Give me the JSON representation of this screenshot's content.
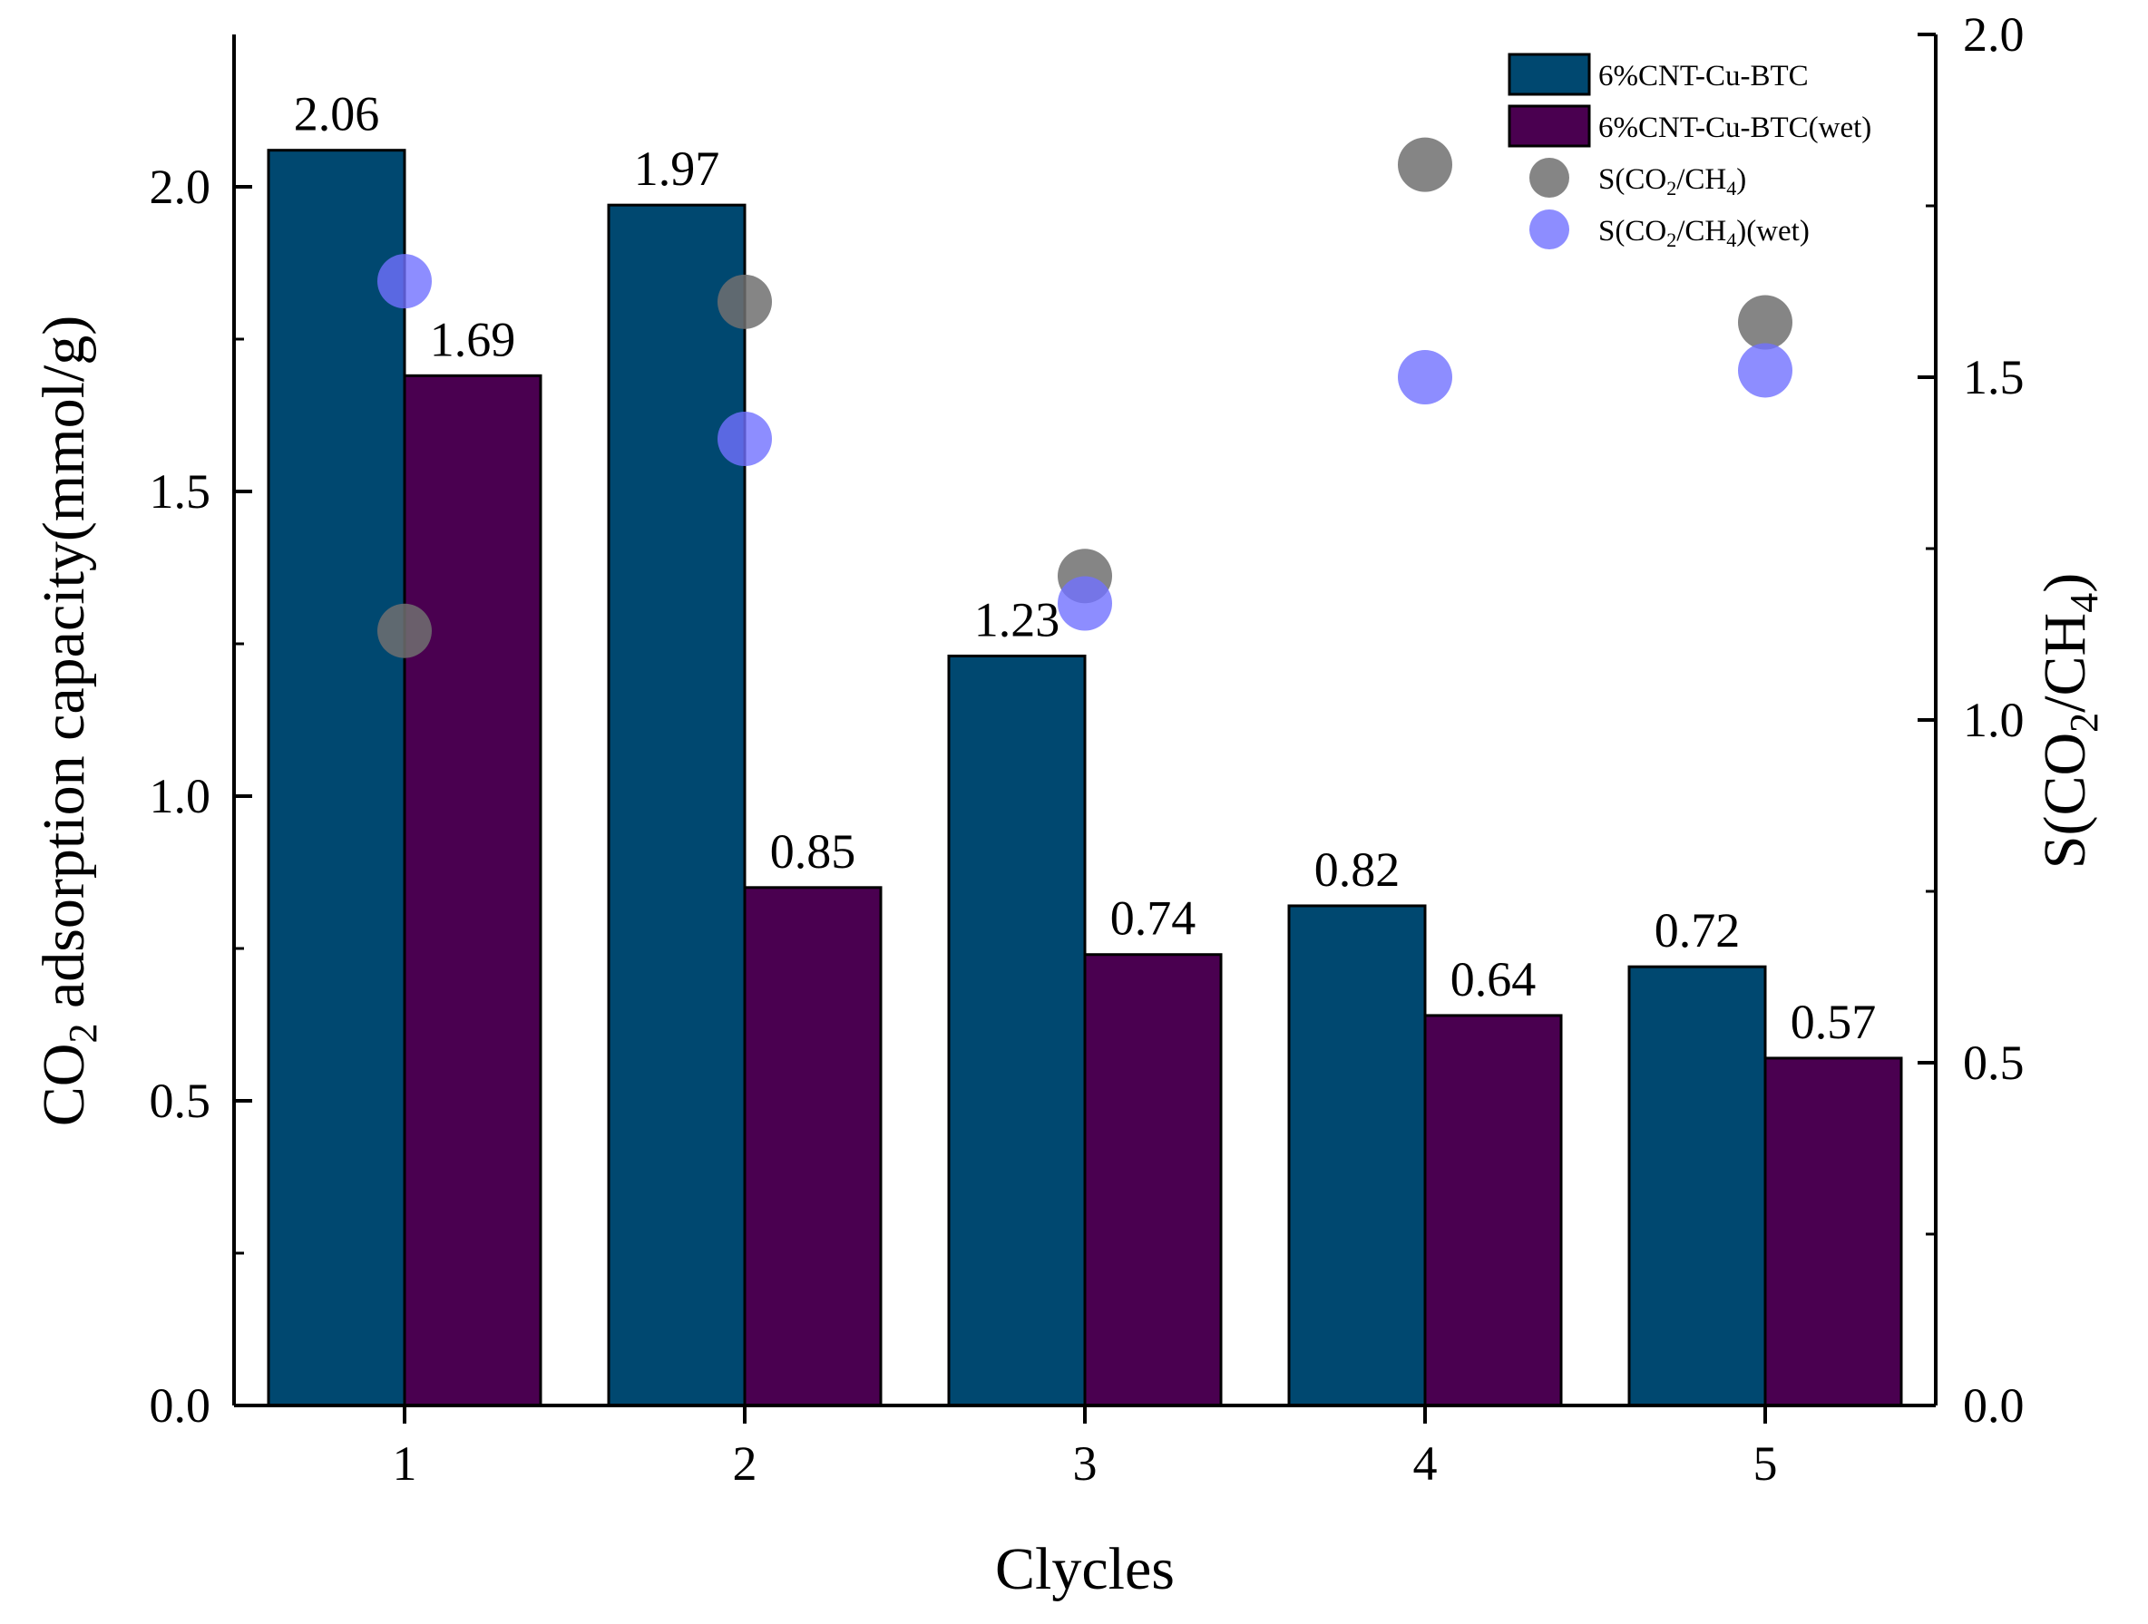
{
  "chart_data": {
    "type": "bar",
    "xlabel": "Clycles",
    "ylabel_left": {
      "text": "CO",
      "sub": "2",
      "rest": " adsorption capacity(mmol/g)"
    },
    "ylabel_right": {
      "pre": "S(CO",
      "sub1": "2",
      "mid": "/CH",
      "sub2": "4",
      "post": ")"
    },
    "categories": [
      "1",
      "2",
      "3",
      "4",
      "5"
    ],
    "ylim_left": [
      0,
      2.25
    ],
    "ylim_right": [
      0,
      2.0
    ],
    "yticks_left": [
      "0.0",
      "0.5",
      "1.0",
      "1.5",
      "2.0"
    ],
    "yticks_right": [
      "0.0",
      "0.5",
      "1.0",
      "1.5",
      "2.0"
    ],
    "series": [
      {
        "name": "6%CNT-Cu-BTC",
        "kind": "bar",
        "axis": "left",
        "color": "#004870",
        "values": [
          2.06,
          1.97,
          1.23,
          0.82,
          0.72
        ],
        "labels": [
          "2.06",
          "1.97",
          "1.23",
          "0.82",
          "0.72"
        ]
      },
      {
        "name": "6%CNT-Cu-BTC(wet)",
        "kind": "bar",
        "axis": "left",
        "color": "#4a0050",
        "values": [
          1.69,
          0.85,
          0.74,
          0.64,
          0.57
        ],
        "labels": [
          "1.69",
          "0.85",
          "0.74",
          "0.64",
          "0.57"
        ]
      },
      {
        "name": "S(CO2/CH4)",
        "kind": "scatter",
        "axis": "right",
        "color": "#707070",
        "legend": {
          "pre": "S(CO",
          "sub1": "2",
          "mid": "/CH",
          "sub2": "4",
          "post": ")"
        },
        "values": [
          1.13,
          1.61,
          1.21,
          1.81,
          1.58
        ]
      },
      {
        "name": "S(CO2/CH4)(wet)",
        "kind": "scatter",
        "axis": "right",
        "color": "#7070ff",
        "legend": {
          "pre": "S(CO",
          "sub1": "2",
          "mid": "/CH",
          "sub2": "4",
          "post": ")(wet)"
        },
        "values": [
          1.64,
          1.41,
          1.17,
          1.5,
          1.51
        ]
      }
    ],
    "legend_position": "top-right",
    "grid": false
  }
}
